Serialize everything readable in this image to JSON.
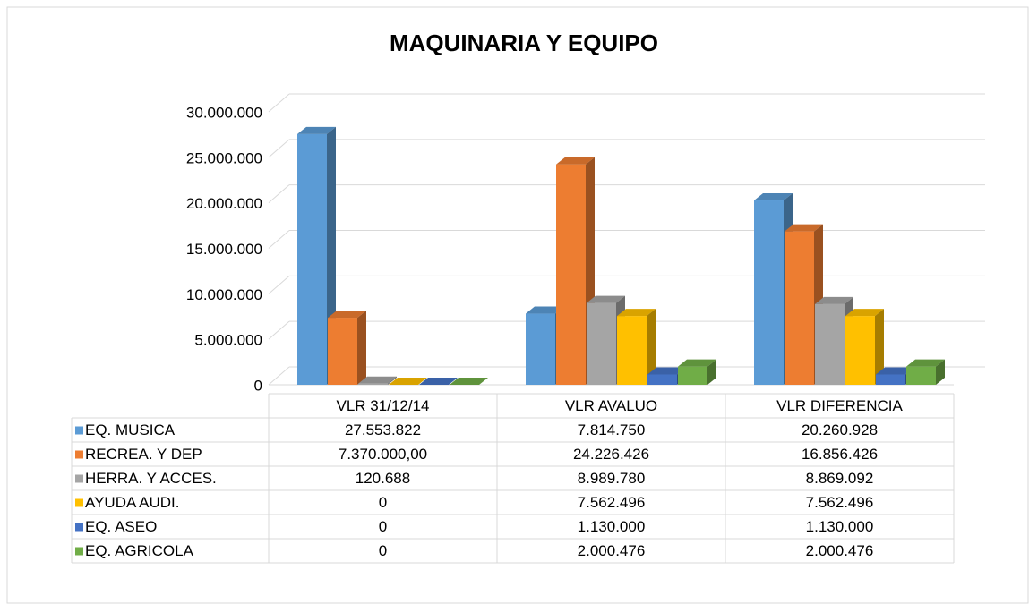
{
  "chart_data": {
    "type": "bar3d",
    "title": "MAQUINARIA Y EQUIPO",
    "categories": [
      "VLR 31/12/14",
      "VLR AVALUO",
      "VLR DIFERENCIA"
    ],
    "series": [
      {
        "name": "EQ. MUSICA",
        "color": "#5b9bd5",
        "values": [
          27553822,
          7814750,
          20260928
        ],
        "value_labels": [
          "27.553.822",
          "7.814.750",
          "20.260.928"
        ]
      },
      {
        "name": "RECREA. Y DEP",
        "color": "#ed7d31",
        "values": [
          7370000,
          24226426,
          16856426
        ],
        "value_labels": [
          "7.370.000,00",
          "24.226.426",
          "16.856.426"
        ]
      },
      {
        "name": "HERRA. Y ACCES.",
        "color": "#a5a5a5",
        "values": [
          120688,
          8989780,
          8869092
        ],
        "value_labels": [
          "120.688",
          "8.989.780",
          "8.869.092"
        ]
      },
      {
        "name": "AYUDA AUDI.",
        "color": "#ffc000",
        "values": [
          0,
          7562496,
          7562496
        ],
        "value_labels": [
          "0",
          "7.562.496",
          "7.562.496"
        ]
      },
      {
        "name": "EQ. ASEO",
        "color": "#4472c4",
        "values": [
          0,
          1130000,
          1130000
        ],
        "value_labels": [
          "0",
          "1.130.000",
          "1.130.000"
        ]
      },
      {
        "name": "EQ. AGRICOLA",
        "color": "#70ad47",
        "values": [
          0,
          2000476,
          2000476
        ],
        "value_labels": [
          "0",
          "2.000.476",
          "2.000.476"
        ]
      }
    ],
    "ylim": [
      0,
      30000000
    ],
    "yticks": [
      0,
      {
        "value": 5000000,
        "label": "5.000.000"
      },
      {
        "value": 10000000,
        "label": "10.000.000"
      },
      {
        "value": 15000000,
        "label": "15.000.000"
      },
      {
        "value": 20000000,
        "label": "20.000.000"
      },
      {
        "value": 25000000,
        "label": "25.000.000"
      },
      {
        "value": 30000000,
        "label": "30.000.000"
      }
    ],
    "grid": true
  }
}
